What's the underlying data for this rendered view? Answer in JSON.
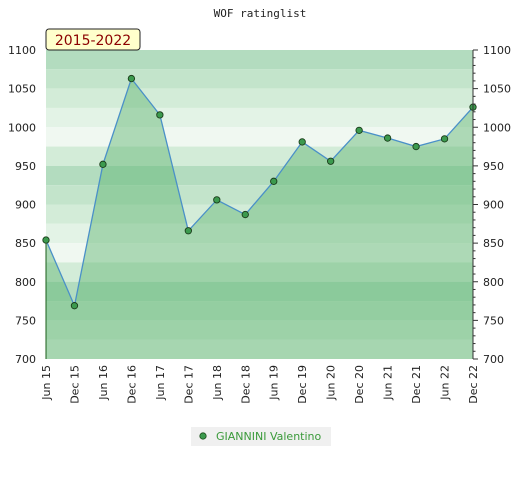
{
  "chart_data": {
    "type": "area",
    "title": "WOF ratinglist",
    "period_label": "2015-2022",
    "categories": [
      "Jun 15",
      "Dec 15",
      "Jun 16",
      "Dec 16",
      "Jun 17",
      "Dec 17",
      "Jun 18",
      "Dec 18",
      "Jun 19",
      "Dec 19",
      "Jun 20",
      "Dec 20",
      "Jun 21",
      "Dec 21",
      "Jun 22",
      "Dec 22"
    ],
    "series": [
      {
        "name": "GIANNINI Valentino",
        "values": [
          854,
          769,
          952,
          1063,
          1016,
          866,
          906,
          887,
          930,
          981,
          956,
          996,
          986,
          975,
          985,
          1026
        ]
      }
    ],
    "ylim": [
      700,
      1100
    ],
    "yticks": [
      700,
      750,
      800,
      850,
      900,
      950,
      1000,
      1050,
      1100
    ],
    "grid": true,
    "legend_position": "bottom",
    "colors": {
      "line": "#4a90c8",
      "fill": "#5ab46e",
      "marker": "#3c9a4e",
      "badge_bg": "#ffffcc"
    }
  }
}
